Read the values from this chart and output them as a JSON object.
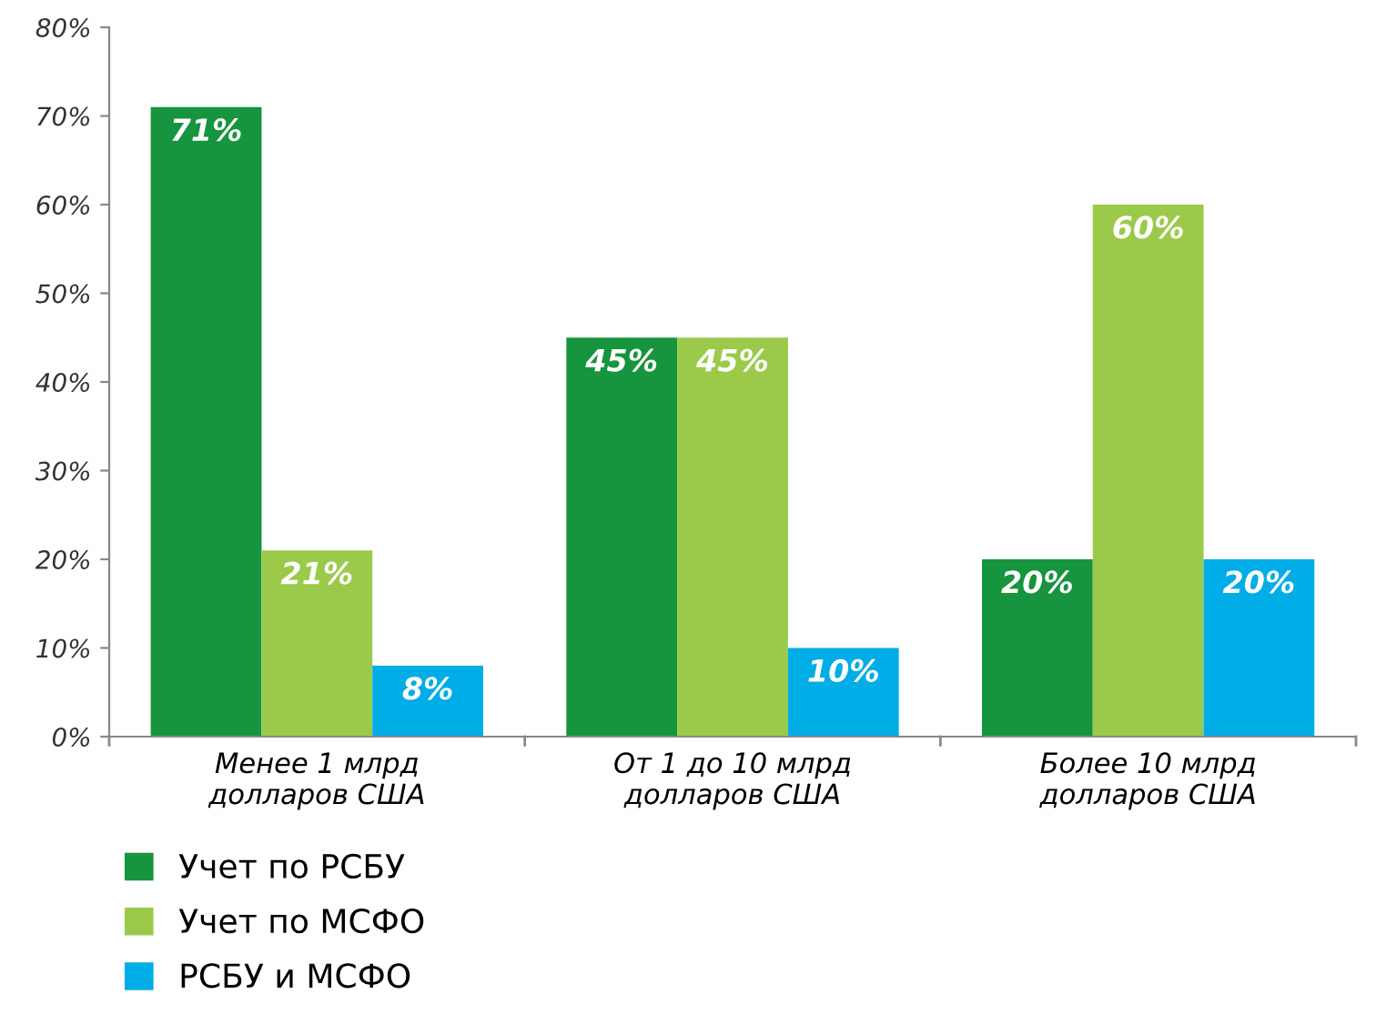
{
  "chart_data": {
    "type": "bar",
    "categories": [
      "Менее 1 млрд\nдолларов США",
      "От 1 до 10 млрд\nдолларов США",
      "Более 10 млрд\nдолларов США"
    ],
    "series": [
      {
        "name": "Учет по РСБУ",
        "color": "#16943e",
        "values": [
          71,
          45,
          20
        ],
        "value_labels": [
          "71%",
          "45%",
          "20%"
        ]
      },
      {
        "name": "Учет по МСФО",
        "color": "#9bca4b",
        "values": [
          21,
          45,
          60
        ],
        "value_labels": [
          "21%",
          "45%",
          "60%"
        ]
      },
      {
        "name": "РСБУ и МСФО",
        "color": "#00ade6",
        "values": [
          8,
          10,
          20
        ],
        "value_labels": [
          "8%",
          "10%",
          "20%"
        ]
      }
    ],
    "ylim": [
      0,
      80
    ],
    "yticks": [
      {
        "value": 0,
        "label": "0%"
      },
      {
        "value": 10,
        "label": "10%"
      },
      {
        "value": 20,
        "label": "20%"
      },
      {
        "value": 30,
        "label": "30%"
      },
      {
        "value": 40,
        "label": "40%"
      },
      {
        "value": 50,
        "label": "50%"
      },
      {
        "value": 60,
        "label": "60%"
      },
      {
        "value": 70,
        "label": "70%"
      },
      {
        "value": 80,
        "label": "80%"
      }
    ],
    "grid": false,
    "legend": "bottom left"
  }
}
